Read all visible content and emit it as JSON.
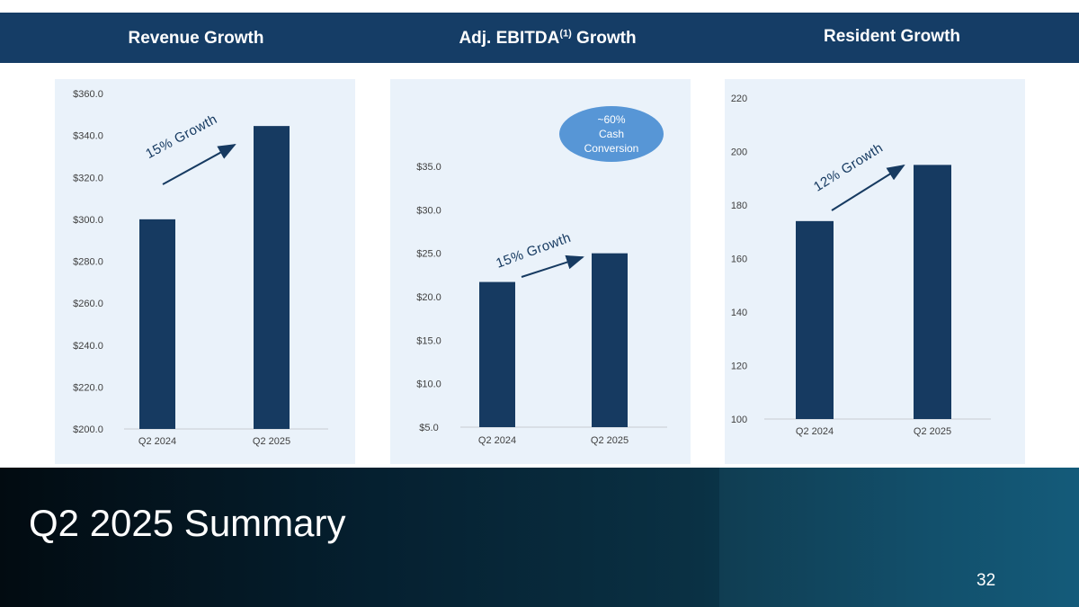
{
  "header": {
    "revenue_title": "Revenue Growth",
    "ebitda_title_pre": "Adj. EBITDA",
    "ebitda_title_sup": "(1)",
    "ebitda_title_post": " Growth",
    "resident_title": "Resident Growth"
  },
  "colors": {
    "header_bg": "#153d66",
    "bar": "#163a61",
    "panel_bg": "#eaf2fa",
    "bubble": "#5796d6",
    "axis_text": "#404040"
  },
  "chart_data": [
    {
      "type": "bar",
      "title": "Revenue Growth",
      "categories": [
        "Q2 2024",
        "Q2 2025"
      ],
      "values": [
        300.0,
        344.5
      ],
      "ylim": [
        200,
        360
      ],
      "yticks": [
        200,
        220,
        240,
        260,
        280,
        300,
        320,
        340,
        360
      ],
      "ytick_labels": [
        "$200.0",
        "$220.0",
        "$240.0",
        "$260.0",
        "$280.0",
        "$300.0",
        "$320.0",
        "$340.0",
        "$360.0"
      ],
      "annotation": "15% Growth",
      "xlabel": "",
      "ylabel": ""
    },
    {
      "type": "bar",
      "title": "Adj. EBITDA(1) Growth",
      "categories": [
        "Q2 2024",
        "Q2 2025"
      ],
      "values": [
        21.7,
        25.0
      ],
      "ylim": [
        5,
        35
      ],
      "yticks": [
        5,
        10,
        15,
        20,
        25,
        30,
        35
      ],
      "ytick_labels": [
        "$5.0",
        "$10.0",
        "$15.0",
        "$20.0",
        "$25.0",
        "$30.0",
        "$35.0"
      ],
      "annotation": "15% Growth",
      "callout": [
        "~60%",
        "Cash",
        "Conversion"
      ],
      "xlabel": "",
      "ylabel": ""
    },
    {
      "type": "bar",
      "title": "Resident Growth",
      "categories": [
        "Q2 2024",
        "Q2 2025"
      ],
      "values": [
        174,
        195
      ],
      "ylim": [
        100,
        220
      ],
      "yticks": [
        100,
        120,
        140,
        160,
        180,
        200,
        220
      ],
      "ytick_labels": [
        "100",
        "120",
        "140",
        "160",
        "180",
        "200",
        "220"
      ],
      "annotation": "12% Growth",
      "xlabel": "",
      "ylabel": ""
    }
  ],
  "footer": {
    "title": "Q2 2025 Summary",
    "page_number": "32"
  }
}
